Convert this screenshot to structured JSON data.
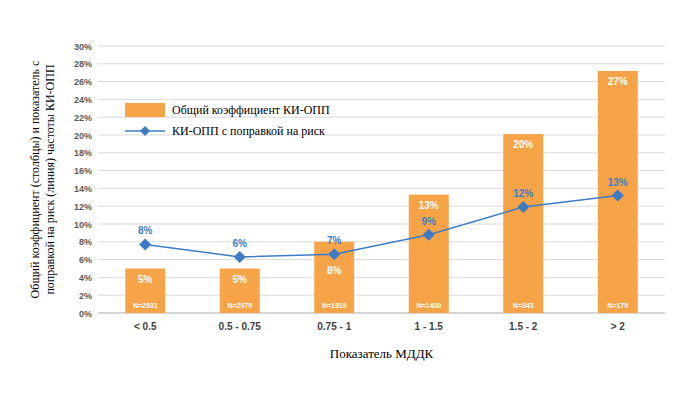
{
  "chart_data": {
    "type": "bar",
    "x_label": "Показатель МДДК",
    "y_label": "Общий коэффициент (столбцы) и показатель с\nпоправкой на риск (линия) частоты КИ-ОПП",
    "categories": [
      "< 0.5",
      "0.5 - 0.75",
      "0.75 - 1",
      "1 - 1.5",
      "1.5 - 2",
      "> 2"
    ],
    "series": [
      {
        "name": "Общий коэффициент КИ-ОПП",
        "type": "bar",
        "color": "#f7a347",
        "values": [
          5,
          5,
          8,
          13.3,
          20.1,
          27.2
        ],
        "value_labels": [
          "5%",
          "5%",
          "8%",
          "13%",
          "20%",
          "27%"
        ],
        "annotations": [
          "N=2931",
          "N=2979",
          "N=1919",
          "N=1430",
          "N=343",
          "N=178"
        ]
      },
      {
        "name": "КИ-ОПП с поправкой на риск",
        "type": "line",
        "color": "#3d7cc4",
        "marker": "diamond",
        "values": [
          7.7,
          6.3,
          6.6,
          8.8,
          11.9,
          13.2
        ],
        "value_labels": [
          "8%",
          "6%",
          "7%",
          "9%",
          "12%",
          "13%"
        ]
      }
    ],
    "ylim": [
      0,
      30
    ],
    "yticks": [
      {
        "value": 0,
        "label": "0%"
      },
      {
        "value": 2,
        "label": "2%"
      },
      {
        "value": 4,
        "label": "4%"
      },
      {
        "value": 6,
        "label": "6%"
      },
      {
        "value": 8,
        "label": "8%"
      },
      {
        "value": 10,
        "label": "10%"
      },
      {
        "value": 12,
        "label": "12%"
      },
      {
        "value": 14,
        "label": "14%"
      },
      {
        "value": 16,
        "label": "16%"
      },
      {
        "value": 18,
        "label": "18%"
      },
      {
        "value": 20,
        "label": "20%"
      },
      {
        "value": 22,
        "label": "22%"
      },
      {
        "value": 24,
        "label": "24%"
      },
      {
        "value": 26,
        "label": "26%"
      },
      {
        "value": 28,
        "label": "28%"
      },
      {
        "value": 30,
        "label": "30%"
      }
    ],
    "grid": true,
    "legend": "upper left",
    "data_labels": true
  }
}
